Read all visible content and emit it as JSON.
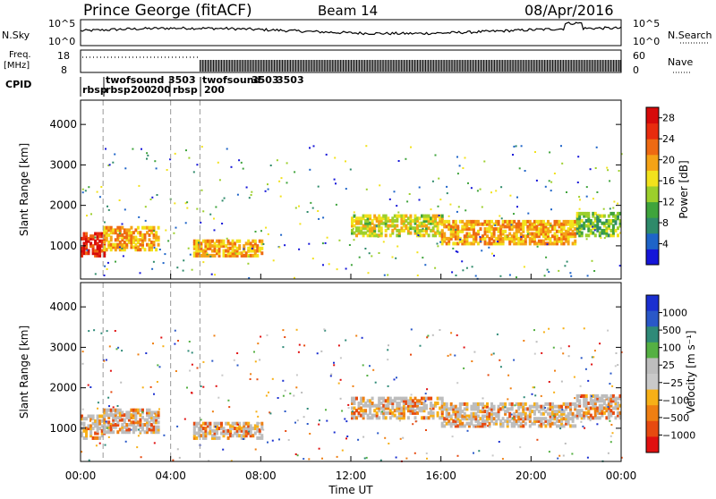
{
  "header": {
    "station": "Prince George (fitACF)",
    "beam": "Beam 14",
    "date": "08/Apr/2016"
  },
  "noise_panel": {
    "left_label": "N.Sky",
    "left_ticks": [
      "10^5",
      "10^0"
    ],
    "right_ticks": [
      "10^5",
      "10^0"
    ],
    "right_label": "N.Search"
  },
  "freq_panel": {
    "left_label_line1": "Freq.",
    "left_label_line2": "[MHz]",
    "left_ticks": [
      "18",
      "8"
    ],
    "right_ticks": [
      "60",
      "0"
    ],
    "right_label": "Nave"
  },
  "cpid": {
    "label": "CPID",
    "segments": [
      {
        "text": "rbsp"
      },
      {
        "text": "twofsound"
      },
      {
        "text": "rbsp"
      },
      {
        "text": "200"
      },
      {
        "text": "3503"
      },
      {
        "text": "200"
      },
      {
        "text": "rbsp"
      },
      {
        "text": "twofsound"
      },
      {
        "text": "3503"
      },
      {
        "text": "200"
      },
      {
        "text": "3503"
      }
    ]
  },
  "colors": {
    "power_scale": [
      "#1515d8",
      "#1e64c8",
      "#2e8a6a",
      "#3fa43c",
      "#9ccf2c",
      "#f2e21c",
      "#f5a316",
      "#ee6a12",
      "#e82c0e",
      "#d60a0a"
    ],
    "velocity_scale": [
      "#1a2fd0",
      "#2a58c8",
      "#2f8a78",
      "#55b043",
      "#bdbdbd",
      "#c9c9c9",
      "#f7b017",
      "#ef7f12",
      "#e74a10",
      "#e01010"
    ]
  },
  "chart_data": [
    {
      "type": "heatmap",
      "name": "power",
      "ylabel": "Slant Range [km]",
      "yticks": [
        1000,
        2000,
        3000,
        4000
      ],
      "ylim": [
        180,
        4600
      ],
      "xlim_hours": [
        0,
        24
      ],
      "colorbar_label": "Power [dB]",
      "colorbar_ticks": [
        4,
        8,
        12,
        16,
        20,
        24,
        28
      ],
      "colorbar_range": [
        0,
        30
      ],
      "dashed_times_hours": [
        1.0,
        4.0,
        5.3
      ],
      "bands": [
        {
          "t0": 0.0,
          "t1": 1.0,
          "r0": 800,
          "r1": 1400,
          "value": 28
        },
        {
          "t0": 1.0,
          "t1": 3.5,
          "r0": 950,
          "r1": 1500,
          "value": 20
        },
        {
          "t0": 5.0,
          "t1": 8.0,
          "r0": 800,
          "r1": 1200,
          "value": 20
        },
        {
          "t0": 12.0,
          "t1": 16.0,
          "r0": 1300,
          "r1": 1800,
          "value": 16
        },
        {
          "t0": 16.0,
          "t1": 22.0,
          "r0": 1100,
          "r1": 1700,
          "value": 20
        },
        {
          "t0": 22.0,
          "t1": 24.0,
          "r0": 1300,
          "r1": 1900,
          "value": 12
        }
      ]
    },
    {
      "type": "heatmap",
      "name": "velocity",
      "ylabel": "Slant Range [km]",
      "yticks": [
        1000,
        2000,
        3000,
        4000
      ],
      "ylim": [
        180,
        4600
      ],
      "xlim_hours": [
        0,
        24
      ],
      "xlabel": "Time UT",
      "xtick_labels": [
        "00:00",
        "04:00",
        "08:00",
        "12:00",
        "16:00",
        "20:00",
        "00:00"
      ],
      "xtick_hours": [
        0,
        4,
        8,
        12,
        16,
        20,
        24
      ],
      "colorbar_label": "Velocity [m s⁻¹]",
      "colorbar_ticks": [
        "1000",
        "500",
        "100",
        "25",
        "−25",
        "−100",
        "−500",
        "−1000"
      ],
      "dashed_times_hours": [
        1.0,
        4.0,
        5.3
      ]
    }
  ]
}
